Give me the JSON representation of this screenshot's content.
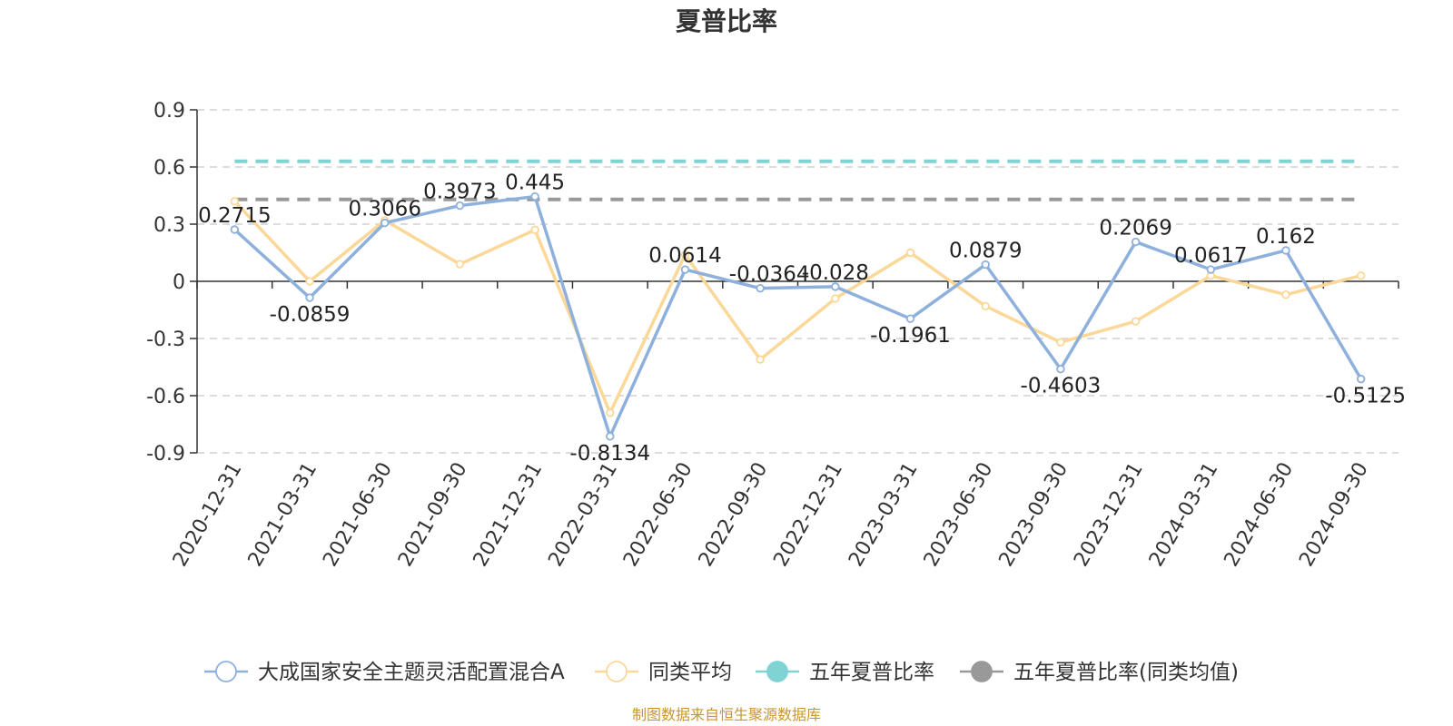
{
  "chart_data": {
    "type": "line",
    "title": "夏普比率",
    "categories": [
      "2020-12-31",
      "2021-03-31",
      "2021-06-30",
      "2021-09-30",
      "2021-12-31",
      "2022-03-31",
      "2022-06-30",
      "2022-09-30",
      "2022-12-31",
      "2023-03-31",
      "2023-06-30",
      "2023-09-30",
      "2023-12-31",
      "2024-03-31",
      "2024-06-30",
      "2024-09-30"
    ],
    "ylim": [
      -0.9,
      0.9
    ],
    "yticks": [
      "0.9",
      "0.6",
      "0.3",
      "0",
      "-0.3",
      "-0.6",
      "-0.9"
    ],
    "grid": true,
    "legend_position": "bottom",
    "series": [
      {
        "name": "大成国家安全主题灵活配置混合A",
        "color": "#8eb0dc",
        "values": [
          0.2715,
          -0.0859,
          0.3066,
          0.3973,
          0.445,
          -0.8134,
          0.0614,
          -0.0364,
          -0.028,
          -0.1961,
          0.0879,
          -0.4603,
          0.2069,
          0.0617,
          0.162,
          -0.5125
        ],
        "labels": [
          "0.2715",
          "-0.0859",
          "0.3066",
          "0.3973",
          "0.445",
          "-0.8134",
          "0.0614",
          "-0.0364",
          "-0.028",
          "-0.1961",
          "0.0879",
          "-0.4603",
          "0.2069",
          "0.0617",
          "0.162",
          "-0.5125"
        ]
      },
      {
        "name": "同类平均",
        "color": "#fbd898",
        "values": [
          0.42,
          0.0,
          0.32,
          0.09,
          0.27,
          -0.69,
          0.14,
          -0.41,
          -0.09,
          0.15,
          -0.13,
          -0.32,
          -0.21,
          0.03,
          -0.07,
          0.03
        ]
      },
      {
        "name": "五年夏普比率",
        "color": "#7fd3d3",
        "constant": 0.63
      },
      {
        "name": "五年夏普比率(同类均值)",
        "color": "#999999",
        "constant": 0.43
      }
    ],
    "source": "制图数据来自恒生聚源数据库"
  }
}
